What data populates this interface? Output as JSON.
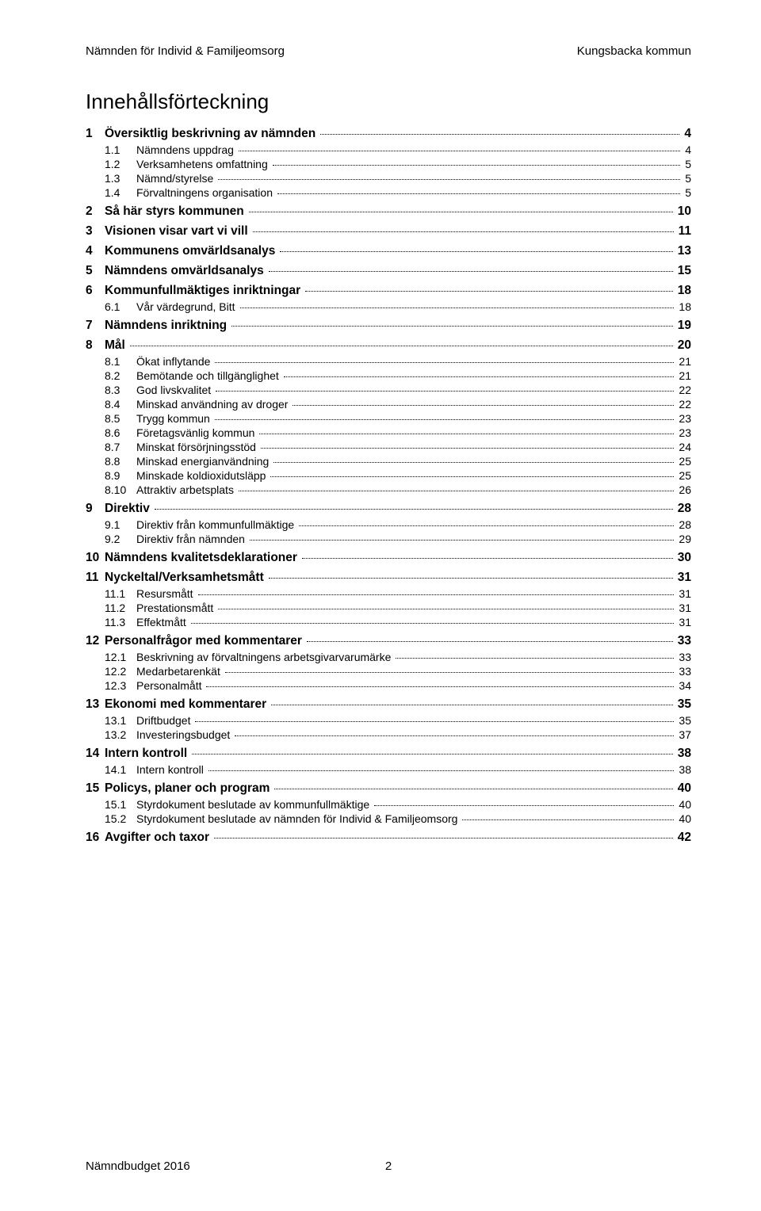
{
  "header": {
    "left": "Nämnden för Individ & Familjeomsorg",
    "right": "Kungsbacka kommun"
  },
  "title": "Innehållsförteckning",
  "footer": {
    "left": "Nämndbudget 2016",
    "page": "2"
  },
  "toc": [
    {
      "level": 1,
      "num": "1",
      "label": "Översiktlig beskrivning av nämnden",
      "page": "4"
    },
    {
      "level": 2,
      "num": "1.1",
      "label": "Nämndens uppdrag",
      "page": "4"
    },
    {
      "level": 2,
      "num": "1.2",
      "label": "Verksamhetens omfattning",
      "page": "5"
    },
    {
      "level": 2,
      "num": "1.3",
      "label": "Nämnd/styrelse",
      "page": "5"
    },
    {
      "level": 2,
      "num": "1.4",
      "label": "Förvaltningens organisation",
      "page": "5"
    },
    {
      "level": 1,
      "num": "2",
      "label": "Så här styrs kommunen",
      "page": "10"
    },
    {
      "level": 1,
      "num": "3",
      "label": "Visionen visar vart vi vill",
      "page": "11"
    },
    {
      "level": 1,
      "num": "4",
      "label": "Kommunens omvärldsanalys",
      "page": "13"
    },
    {
      "level": 1,
      "num": "5",
      "label": "Nämndens omvärldsanalys",
      "page": "15"
    },
    {
      "level": 1,
      "num": "6",
      "label": "Kommunfullmäktiges inriktningar",
      "page": "18"
    },
    {
      "level": 2,
      "num": "6.1",
      "label": "Vår värdegrund, Bitt",
      "page": "18"
    },
    {
      "level": 1,
      "num": "7",
      "label": "Nämndens inriktning",
      "page": "19"
    },
    {
      "level": 1,
      "num": "8",
      "label": "Mål",
      "page": "20"
    },
    {
      "level": 2,
      "num": "8.1",
      "label": "Ökat inflytande",
      "page": "21"
    },
    {
      "level": 2,
      "num": "8.2",
      "label": "Bemötande och tillgänglighet",
      "page": "21"
    },
    {
      "level": 2,
      "num": "8.3",
      "label": "God livskvalitet",
      "page": "22"
    },
    {
      "level": 2,
      "num": "8.4",
      "label": "Minskad användning av droger",
      "page": "22"
    },
    {
      "level": 2,
      "num": "8.5",
      "label": "Trygg kommun",
      "page": "23"
    },
    {
      "level": 2,
      "num": "8.6",
      "label": "Företagsvänlig kommun",
      "page": "23"
    },
    {
      "level": 2,
      "num": "8.7",
      "label": "Minskat försörjningsstöd",
      "page": "24"
    },
    {
      "level": 2,
      "num": "8.8",
      "label": "Minskad energianvändning",
      "page": "25"
    },
    {
      "level": 2,
      "num": "8.9",
      "label": "Minskade koldioxidutsläpp",
      "page": "25"
    },
    {
      "level": 2,
      "num": "8.10",
      "label": "Attraktiv arbetsplats",
      "page": "26"
    },
    {
      "level": 1,
      "num": "9",
      "label": "Direktiv",
      "page": "28"
    },
    {
      "level": 2,
      "num": "9.1",
      "label": "Direktiv från kommunfullmäktige",
      "page": "28"
    },
    {
      "level": 2,
      "num": "9.2",
      "label": "Direktiv från nämnden",
      "page": "29"
    },
    {
      "level": 1,
      "num": "10",
      "label": "Nämndens kvalitetsdeklarationer",
      "page": "30"
    },
    {
      "level": 1,
      "num": "11",
      "label": "Nyckeltal/Verksamhetsmått",
      "page": "31"
    },
    {
      "level": 2,
      "num": "11.1",
      "label": "Resursmått",
      "page": "31"
    },
    {
      "level": 2,
      "num": "11.2",
      "label": "Prestationsmått",
      "page": "31"
    },
    {
      "level": 2,
      "num": "11.3",
      "label": "Effektmått",
      "page": "31"
    },
    {
      "level": 1,
      "num": "12",
      "label": "Personalfrågor med kommentarer",
      "page": "33"
    },
    {
      "level": 2,
      "num": "12.1",
      "label": "Beskrivning av förvaltningens arbetsgivarvarumärke",
      "page": "33"
    },
    {
      "level": 2,
      "num": "12.2",
      "label": "Medarbetarenkät",
      "page": "33"
    },
    {
      "level": 2,
      "num": "12.3",
      "label": "Personalmått",
      "page": "34"
    },
    {
      "level": 1,
      "num": "13",
      "label": "Ekonomi med kommentarer",
      "page": "35"
    },
    {
      "level": 2,
      "num": "13.1",
      "label": "Driftbudget",
      "page": "35"
    },
    {
      "level": 2,
      "num": "13.2",
      "label": "Investeringsbudget",
      "page": "37"
    },
    {
      "level": 1,
      "num": "14",
      "label": "Intern kontroll",
      "page": "38"
    },
    {
      "level": 2,
      "num": "14.1",
      "label": "Intern kontroll",
      "page": "38"
    },
    {
      "level": 1,
      "num": "15",
      "label": "Policys, planer och program",
      "page": "40"
    },
    {
      "level": 2,
      "num": "15.1",
      "label": "Styrdokument beslutade av kommunfullmäktige",
      "page": "40"
    },
    {
      "level": 2,
      "num": "15.2",
      "label": "Styrdokument beslutade av nämnden för Individ & Familjeomsorg",
      "page": "40"
    },
    {
      "level": 1,
      "num": "16",
      "label": "Avgifter och taxor",
      "page": "42"
    }
  ]
}
